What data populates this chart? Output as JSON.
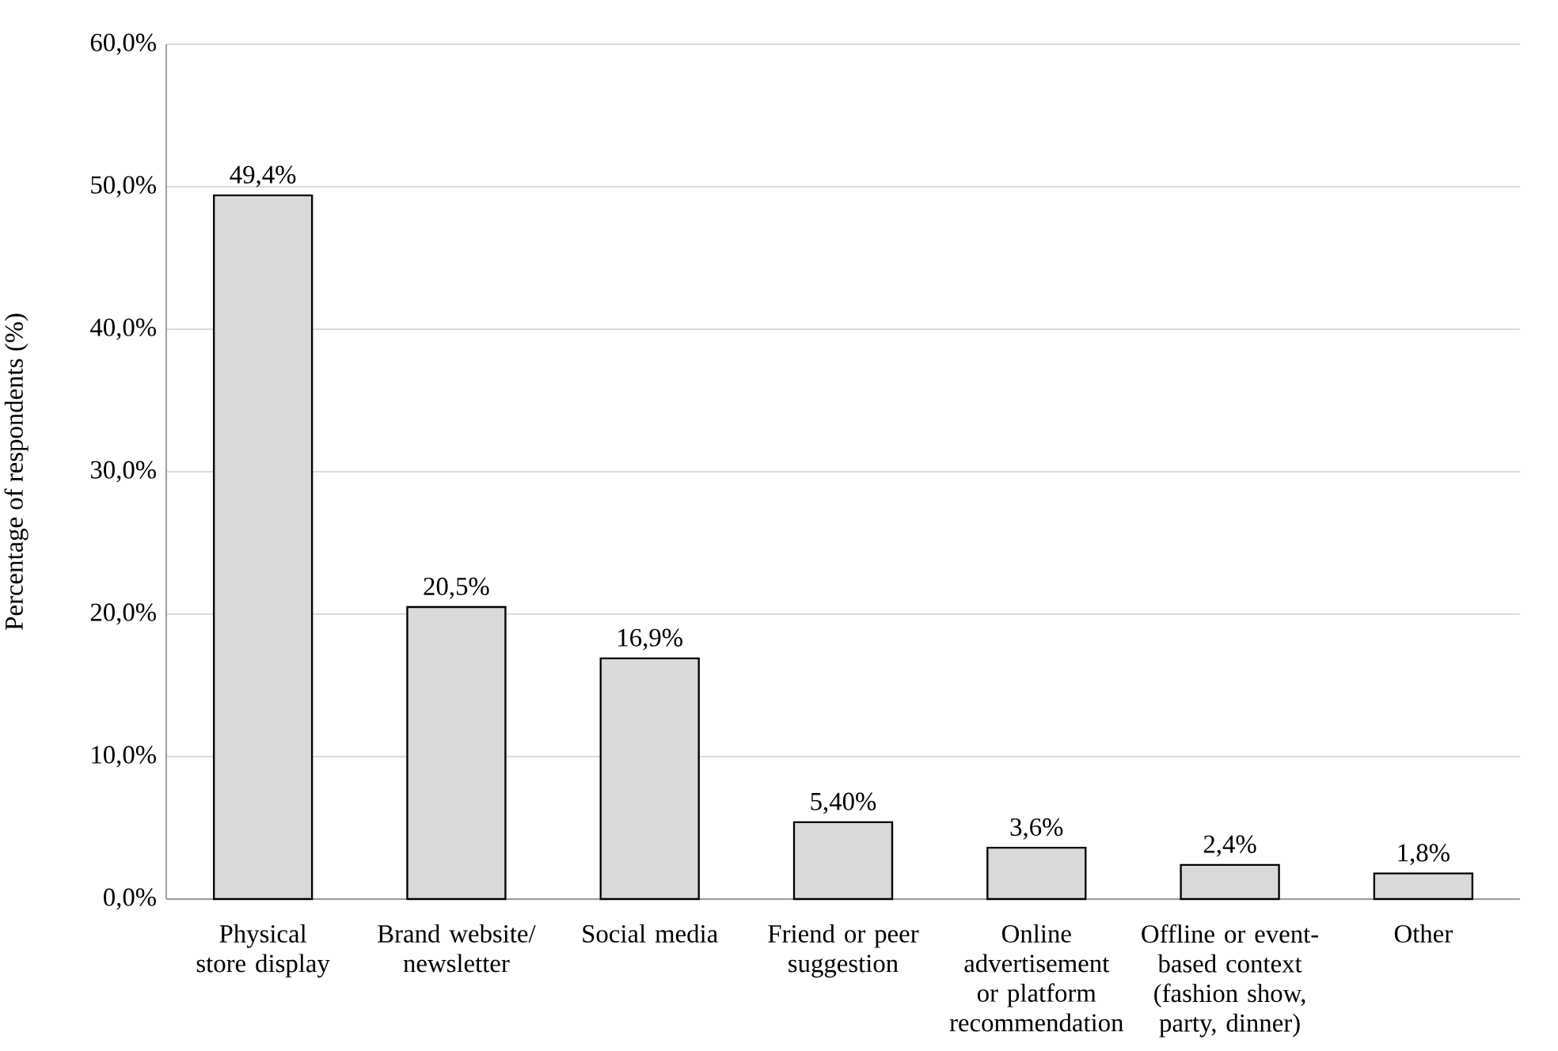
{
  "chart_data": {
    "type": "bar",
    "ylabel": "Percentage of respondents (%)",
    "categories": [
      "Physical store display",
      "Brand website/ newsletter",
      "Social media",
      "Friend or peer suggestion",
      "Online advertisement or platform recommendation",
      "Offline or event-based context (fashion show, party, dinner)",
      "Other"
    ],
    "values": [
      49.4,
      20.5,
      16.9,
      5.4,
      3.6,
      2.4,
      1.8
    ],
    "value_labels": [
      "49,4%",
      "20,5%",
      "16,9%",
      "5,40%",
      "3,6%",
      "2,4%",
      "1,8%"
    ],
    "color": "#d9d9d9",
    "ylim": [
      0,
      60
    ],
    "yticks": [
      {
        "value": 0,
        "label": "0,0%"
      },
      {
        "value": 10,
        "label": "10,0%"
      },
      {
        "value": 20,
        "label": "20,0%"
      },
      {
        "value": 30,
        "label": "30,0%"
      },
      {
        "value": 40,
        "label": "40,0%"
      },
      {
        "value": 50,
        "label": "50,0%"
      },
      {
        "value": 60,
        "label": "60,0%"
      }
    ],
    "grid": "y"
  }
}
